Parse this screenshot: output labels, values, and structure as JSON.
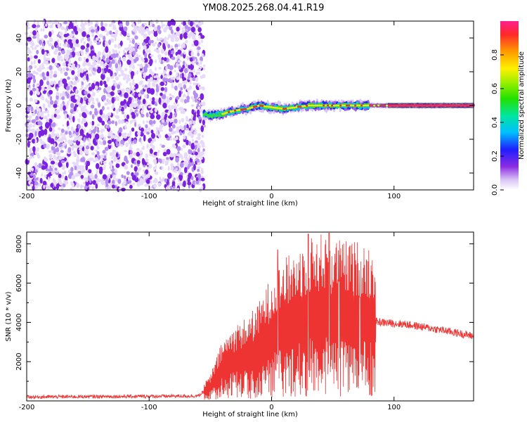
{
  "title": "YM08.2025.268.04.41.R19",
  "colors": {
    "snr_line": "#ee3333",
    "scatter_purple": "#7733dd",
    "axis": "#000000"
  },
  "chart_data": [
    {
      "type": "heatmap",
      "title": "YM08.2025.268.04.41.R19",
      "xlabel": "Height of straight line (km)",
      "ylabel": "Frequency (Hz)",
      "xlim": [
        -200,
        165
      ],
      "ylim": [
        -50,
        50
      ],
      "xticks": [
        -200,
        -100,
        0,
        100
      ],
      "yticks": [
        -40,
        -20,
        0,
        20,
        40
      ],
      "noise_region_x": [
        -200,
        -55
      ],
      "signal_track": {
        "x": [
          -55,
          -50,
          -40,
          -30,
          -20,
          -10,
          0,
          10,
          20,
          30,
          40,
          50,
          60,
          75,
          90,
          100,
          120,
          140,
          165
        ],
        "freq": [
          -5,
          -6,
          -5,
          -3,
          -2,
          0,
          -1,
          -2,
          -1,
          0,
          0,
          0,
          0,
          0,
          0,
          0,
          0,
          0,
          0
        ]
      },
      "colorbar": {
        "label": "Normalized spectral amplitude",
        "range": [
          0,
          1
        ],
        "ticks": [
          0.0,
          0.2,
          0.4,
          0.6,
          0.8
        ]
      }
    },
    {
      "type": "line",
      "xlabel": "Height of straight line (km)",
      "ylabel": "SNR (10 * v/v)",
      "xlim": [
        -200,
        165
      ],
      "ylim": [
        0,
        8600
      ],
      "xticks": [
        -200,
        -100,
        0,
        100
      ],
      "yticks": [
        2000,
        4000,
        6000,
        8000
      ],
      "envelope": {
        "x": [
          -200,
          -60,
          -50,
          -40,
          -30,
          -20,
          -10,
          0,
          10,
          20,
          30,
          40,
          50,
          60,
          70,
          80,
          90,
          100,
          110,
          120,
          140,
          165
        ],
        "y": [
          200,
          250,
          700,
          1600,
          2000,
          2200,
          2600,
          3300,
          3700,
          4000,
          4300,
          4400,
          4300,
          4200,
          4200,
          4100,
          4000,
          3950,
          3900,
          3800,
          3600,
          3300
        ]
      },
      "peaks": [
        {
          "x": 5,
          "y": 7700
        },
        {
          "x": 30,
          "y": 8500
        },
        {
          "x": 47,
          "y": 8550
        },
        {
          "x": 55,
          "y": 6100
        },
        {
          "x": 72,
          "y": 5300
        }
      ]
    }
  ]
}
